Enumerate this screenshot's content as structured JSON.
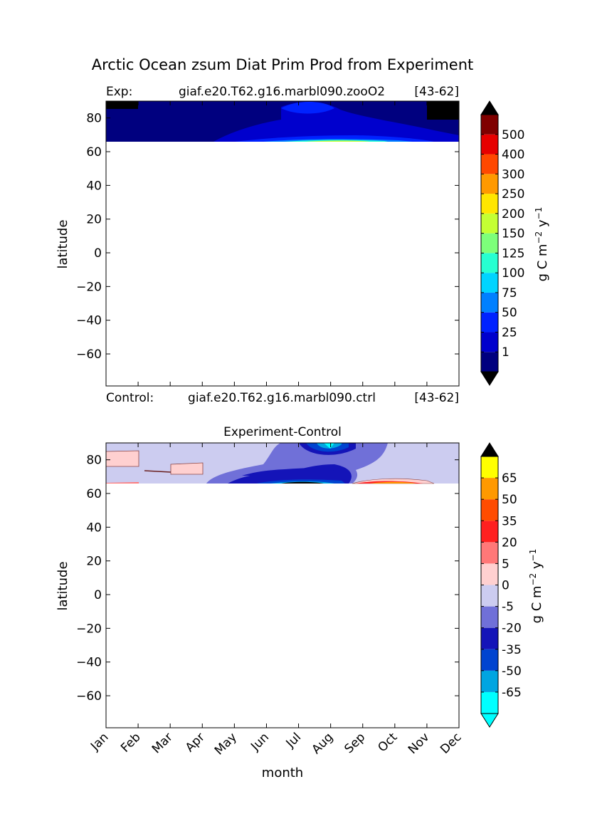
{
  "figure_title": "Arctic Ocean zsum Diat Prim Prod from Experiment",
  "chart_data": [
    {
      "type": "contour",
      "id": "experiment",
      "header_left_label": "Exp:",
      "header_case": "giaf.e20.T62.g16.marbl090.zooO2",
      "header_years": "[43-62]",
      "footer_left_label": "Control:",
      "footer_case": "giaf.e20.T62.g16.marbl090.ctrl",
      "footer_years": "[43-62]",
      "ylabel": "latitude",
      "ylim": [
        -79,
        90
      ],
      "yticks": [
        80,
        60,
        40,
        20,
        0,
        -20,
        -40,
        -60
      ],
      "xlim": [
        0,
        11
      ],
      "data_lat_range": [
        66,
        90
      ],
      "colorbar": {
        "label": "g C m^-2 y^-1",
        "levels": [
          1,
          25,
          50,
          75,
          100,
          125,
          150,
          200,
          250,
          300,
          400,
          500
        ],
        "colors": [
          "#00007f",
          "#0000cd",
          "#0022ff",
          "#0080ff",
          "#00d4ff",
          "#26ffd1",
          "#7dff7a",
          "#c4ff33",
          "#ffe600",
          "#ff9900",
          "#ff4800",
          "#e60000",
          "#7f0000"
        ],
        "under_color": "#000000",
        "over_color": "#000000"
      }
    },
    {
      "type": "contour",
      "id": "difference",
      "title": "Experiment-Control",
      "ylabel": "latitude",
      "xlabel": "month",
      "ylim": [
        -79,
        90
      ],
      "yticks": [
        80,
        60,
        40,
        20,
        0,
        -20,
        -40,
        -60
      ],
      "xlim": [
        0,
        11
      ],
      "xticks": [
        "Jan",
        "Feb",
        "Mar",
        "Apr",
        "May",
        "Jun",
        "Jul",
        "Aug",
        "Sep",
        "Oct",
        "Nov",
        "Dec"
      ],
      "data_lat_range": [
        66,
        90
      ],
      "colorbar": {
        "label": "g C m^-2 y^-1",
        "levels": [
          -65,
          -50,
          -35,
          -20,
          -5,
          0,
          5,
          20,
          35,
          50,
          65
        ],
        "colors": [
          "#00ffff",
          "#00a5e1",
          "#0044d0",
          "#1414b8",
          "#7070d8",
          "#ccccf0",
          "#ffd0d0",
          "#ff7878",
          "#ff2020",
          "#ff4c00",
          "#ff9900",
          "#ffff00"
        ],
        "under_color": "#00ffff",
        "over_color": "#000000"
      }
    }
  ]
}
